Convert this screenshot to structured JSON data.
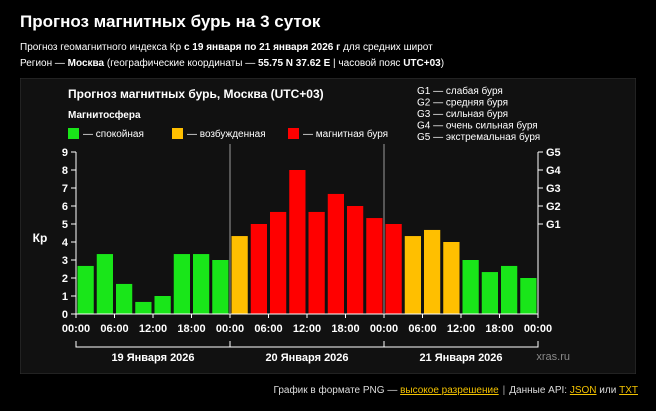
{
  "header": {
    "title": "Прогноз магнитных бурь на 3 суток",
    "line1_prefix": "Прогноз геомагнитного индекса Кр ",
    "line1_dates": "с 19 января по 21 января 2026 г",
    "line1_suffix": " для средних широт",
    "line2_prefix": "Регион — ",
    "line2_city": "Москва",
    "line2_mid": " (географические координаты — ",
    "line2_coords": "55.75 N 37.62 E",
    "line2_sep": " | часовой пояс ",
    "line2_tz": "UTC+03",
    "line2_end": ")"
  },
  "footer": {
    "png_prefix": "График в формате PNG — ",
    "png_link": "высокое разрешение",
    "separator": "|",
    "api_prefix": "Данные API: ",
    "json_link": "JSON",
    "or": " или ",
    "txt_link": "TXT"
  },
  "colors": {
    "calm": "#19e619",
    "excited": "#ffbf00",
    "storm": "#ff0000",
    "background": "#000000",
    "axis": "#ffffff"
  },
  "chart_data": {
    "type": "bar",
    "title": "Прогноз магнитных бурь, Москва (UTC+03)",
    "legend_title": "Магнитосфера",
    "legend": [
      {
        "key": "calm",
        "label": "— спокойная"
      },
      {
        "key": "excited",
        "label": "— возбужденная"
      },
      {
        "key": "storm",
        "label": "— магнитная буря"
      }
    ],
    "storm_scale_legend": [
      "G1 — слабая буря",
      "G2 — средняя буря",
      "G3 — сильная буря",
      "G4 — очень сильная буря",
      "G5 — экстремальная буря"
    ],
    "ylabel": "Кр",
    "ylim": [
      0,
      9
    ],
    "yticks": [
      "0",
      "1",
      "2",
      "3",
      "4",
      "5",
      "6",
      "7",
      "8",
      "9"
    ],
    "right_ticks": [
      {
        "label": "G1",
        "value": 5
      },
      {
        "label": "G2",
        "value": 6
      },
      {
        "label": "G3",
        "value": 7
      },
      {
        "label": "G4",
        "value": 8
      },
      {
        "label": "G5",
        "value": 9
      }
    ],
    "xtick_labels": [
      "00:00",
      "06:00",
      "12:00",
      "18:00",
      "00:00",
      "06:00",
      "12:00",
      "18:00",
      "00:00",
      "06:00",
      "12:00",
      "18:00",
      "00:00"
    ],
    "day_labels": [
      "19 Января 2026",
      "20 Января 2026",
      "21 Января 2026"
    ],
    "watermark": "xras.ru",
    "values": [
      2.67,
      3.33,
      1.67,
      0.67,
      1.0,
      3.33,
      3.33,
      3.0,
      4.33,
      5.0,
      5.67,
      8.0,
      5.67,
      6.67,
      6.0,
      5.33,
      5.0,
      4.33,
      4.67,
      4.0,
      3.0,
      2.33,
      2.67,
      2.0
    ],
    "levels": [
      "calm",
      "calm",
      "calm",
      "calm",
      "calm",
      "calm",
      "calm",
      "calm",
      "excited",
      "storm",
      "storm",
      "storm",
      "storm",
      "storm",
      "storm",
      "storm",
      "storm",
      "excited",
      "excited",
      "excited",
      "calm",
      "calm",
      "calm",
      "calm"
    ]
  }
}
